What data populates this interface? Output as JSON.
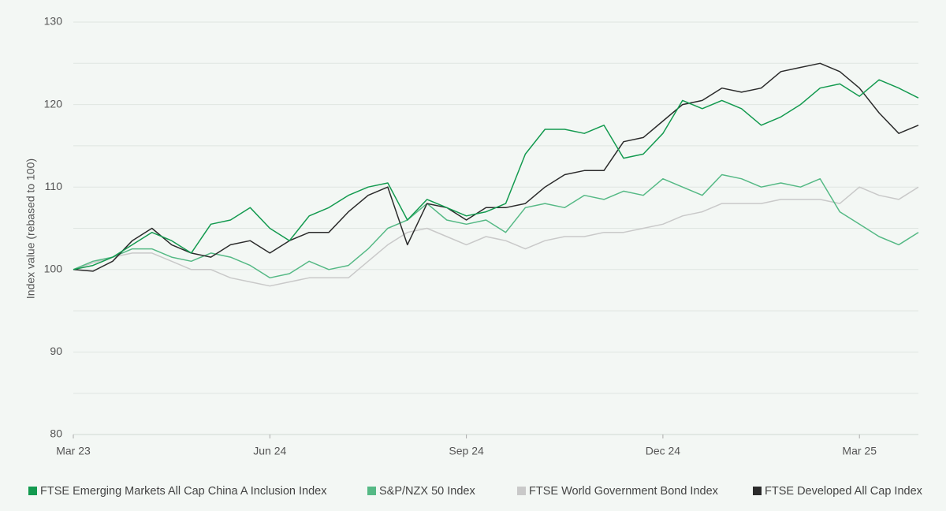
{
  "chart_data": {
    "type": "line",
    "y_label": "Index value (rebased to 100)",
    "categories": [
      "Mar 23",
      null,
      null,
      null,
      null,
      null,
      null,
      null,
      null,
      null,
      "Jun 24",
      null,
      null,
      null,
      null,
      null,
      null,
      null,
      null,
      null,
      "Sep 24",
      null,
      null,
      null,
      null,
      null,
      null,
      null,
      null,
      null,
      "Dec 24",
      null,
      null,
      null,
      null,
      null,
      null,
      null,
      null,
      null,
      "Mar 25",
      null,
      null,
      null
    ],
    "ylim": [
      80,
      130
    ],
    "yticks": [
      80,
      90,
      100,
      110,
      120,
      130
    ],
    "ygrid": [
      80,
      85,
      90,
      95,
      100,
      105,
      110,
      115,
      120,
      125,
      130
    ],
    "series": [
      {
        "name": "FTSE Emerging Markets All Cap China A Inclusion Index",
        "color": "#139a4f",
        "values": [
          100,
          100.5,
          101.5,
          103,
          104.5,
          103.5,
          102,
          105.5,
          106,
          107.5,
          105,
          103.5,
          106.5,
          107.5,
          109,
          110,
          110.5,
          106,
          108.5,
          107.5,
          106.5,
          107,
          108,
          114,
          117,
          117,
          116.5,
          117.5,
          113.5,
          114,
          116.5,
          120.5,
          119.5,
          120.5,
          119.5,
          117.5,
          118.5,
          120,
          122,
          122.5,
          121,
          123,
          122,
          120.8
        ]
      },
      {
        "name": "S&P/NZX 50 Index",
        "color": "#55b985",
        "values": [
          100,
          101,
          101.5,
          102.5,
          102.5,
          101.5,
          101,
          102,
          101.5,
          100.5,
          99,
          99.5,
          101,
          100,
          100.5,
          102.5,
          105,
          106,
          108,
          106,
          105.5,
          106,
          104.5,
          107.5,
          108,
          107.5,
          109,
          108.5,
          109.5,
          109,
          111,
          110,
          109,
          111.5,
          111,
          110,
          110.5,
          110,
          111,
          107,
          105.5,
          104,
          103,
          104.5
        ]
      },
      {
        "name": "FTSE World Government Bond Index",
        "color": "#c9c9c9",
        "values": [
          100,
          100.8,
          101.5,
          102,
          102,
          101,
          100,
          100,
          99,
          98.5,
          98,
          98.5,
          99,
          99,
          99,
          101,
          103,
          104.5,
          105,
          104,
          103,
          104,
          103.5,
          102.5,
          103.5,
          104,
          104,
          104.5,
          104.5,
          105,
          105.5,
          106.5,
          107,
          108,
          108,
          108,
          108.5,
          108.5,
          108.5,
          108,
          110,
          109,
          108.5,
          110
        ]
      },
      {
        "name": "FTSE Developed All Cap Index",
        "color": "#2b2b2b",
        "values": [
          100,
          99.8,
          101,
          103.5,
          105,
          103,
          102,
          101.5,
          103,
          103.5,
          102,
          103.5,
          104.5,
          104.5,
          107,
          109,
          110,
          103,
          108,
          107.5,
          106,
          107.5,
          107.5,
          108,
          110,
          111.5,
          112,
          112,
          115.5,
          116,
          118,
          120,
          120.5,
          122,
          121.5,
          122,
          124,
          124.5,
          125,
          124,
          122,
          119,
          116.5,
          117.5
        ]
      }
    ]
  }
}
